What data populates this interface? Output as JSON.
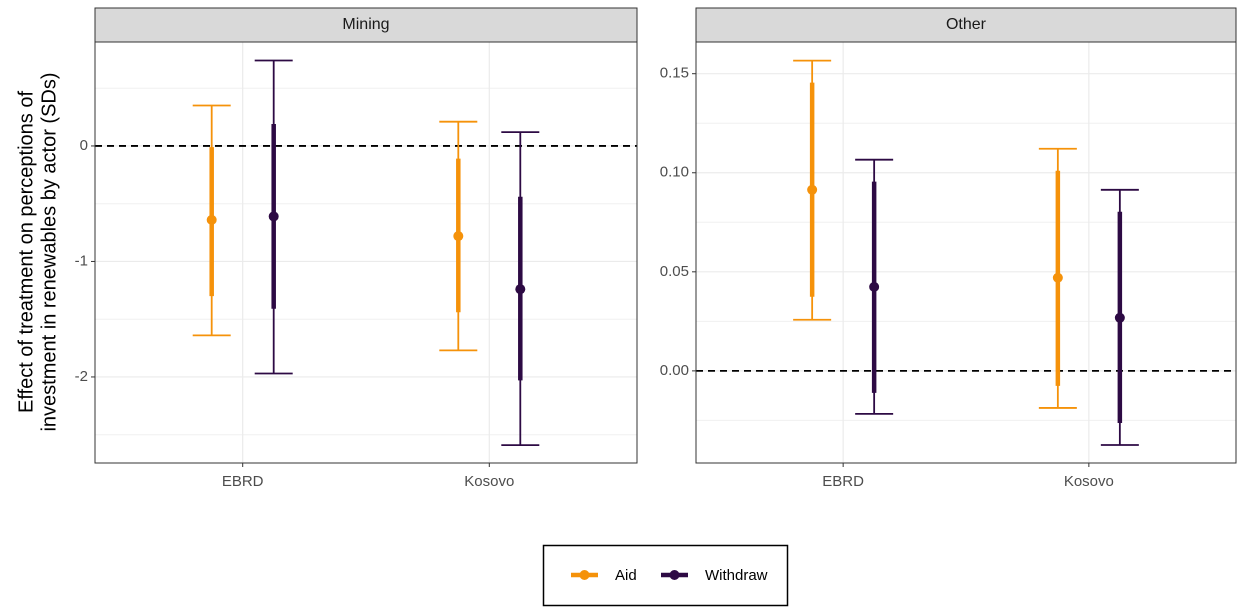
{
  "chart_data": [
    {
      "type": "pointrange",
      "title": "Mining",
      "ylabel": [
        "Effect of treatment on perceptions of",
        "investment in renewables by actor (SDs)"
      ],
      "categories": [
        "EBRD",
        "Kosovo"
      ],
      "series": [
        {
          "name": "Aid",
          "color": "#f5920a",
          "values": [
            -0.64,
            -0.78
          ],
          "inner_low": [
            -1.3,
            -1.44
          ],
          "inner_high": [
            -0.01,
            -0.11
          ],
          "low": [
            -1.64,
            -1.77
          ],
          "high": [
            0.35,
            0.21
          ]
        },
        {
          "name": "Withdraw",
          "color": "#2d0a44",
          "values": [
            -0.61,
            -1.24
          ],
          "inner_low": [
            -1.41,
            -2.03
          ],
          "inner_high": [
            0.19,
            -0.44
          ],
          "low": [
            -1.97,
            -2.59
          ],
          "high": [
            0.74,
            0.12
          ]
        }
      ],
      "hline": 0,
      "ylim": [
        -2.745,
        0.9
      ],
      "yticks": [
        0,
        -1,
        -2
      ],
      "grid": true
    },
    {
      "type": "pointrange",
      "title": "Other",
      "categories": [
        "EBRD",
        "Kosovo"
      ],
      "series": [
        {
          "color": "#f5920a",
          "values": [
            0.0914,
            0.047
          ],
          "inner_low": [
            0.0374,
            -0.0076
          ],
          "inner_high": [
            0.1455,
            0.101
          ],
          "low": [
            0.0258,
            -0.0187
          ],
          "high": [
            0.1566,
            0.1121
          ]
        },
        {
          "color": "#2d0a44",
          "values": [
            0.0424,
            0.0268
          ],
          "inner_low": [
            -0.0111,
            -0.0263
          ],
          "inner_high": [
            0.0955,
            0.0803
          ],
          "low": [
            -0.0217,
            -0.0374
          ],
          "high": [
            0.1066,
            0.0914
          ]
        }
      ],
      "hline": 0,
      "ylim": [
        -0.0465,
        0.166
      ],
      "yticks": [
        {
          "value": 0,
          "label": "0.00"
        },
        {
          "value": 0.05,
          "label": "0.05"
        },
        {
          "value": 0.1,
          "label": "0.10"
        },
        {
          "value": 0.15,
          "label": "0.15"
        }
      ],
      "grid": true
    }
  ]
}
